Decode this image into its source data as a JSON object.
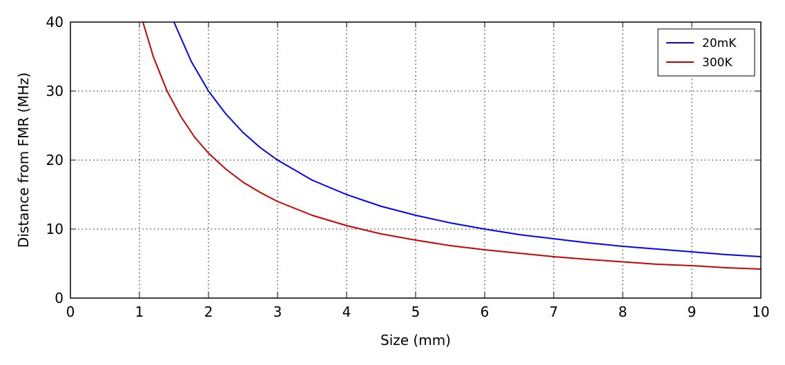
{
  "chart_data": {
    "type": "line",
    "xlabel": "Size (mm)",
    "ylabel": "Distance from FMR (MHz)",
    "xlim": [
      0,
      10
    ],
    "ylim": [
      0,
      40
    ],
    "xticks": [
      0,
      1,
      2,
      3,
      4,
      5,
      6,
      7,
      8,
      9,
      10
    ],
    "yticks": [
      0,
      10,
      20,
      30,
      40
    ],
    "grid": true,
    "legend_position": "top-right",
    "series": [
      {
        "name": "20mK",
        "color": "#0000ff",
        "x": [
          1.5,
          1.75,
          2,
          2.25,
          2.5,
          2.75,
          3,
          3.5,
          4,
          4.5,
          5,
          5.5,
          6,
          6.5,
          7,
          7.5,
          8,
          8.5,
          9,
          9.5,
          10
        ],
        "y": [
          40,
          34.3,
          30,
          26.7,
          24,
          21.8,
          20,
          17.1,
          15,
          13.3,
          12,
          10.9,
          10,
          9.2,
          8.6,
          8,
          7.5,
          7.1,
          6.7,
          6.3,
          6
        ]
      },
      {
        "name": "300K",
        "color": "#cc0000",
        "x": [
          1.05,
          1.2,
          1.4,
          1.6,
          1.8,
          2,
          2.25,
          2.5,
          2.75,
          3,
          3.5,
          4,
          4.5,
          5,
          5.5,
          6,
          6.5,
          7,
          7.5,
          8,
          8.5,
          9,
          9.5,
          10
        ],
        "y": [
          40,
          35,
          30,
          26.3,
          23.3,
          21,
          18.7,
          16.8,
          15.3,
          14,
          12,
          10.5,
          9.3,
          8.4,
          7.6,
          7,
          6.5,
          6,
          5.6,
          5.25,
          4.9,
          4.7,
          4.4,
          4.2
        ]
      }
    ]
  }
}
